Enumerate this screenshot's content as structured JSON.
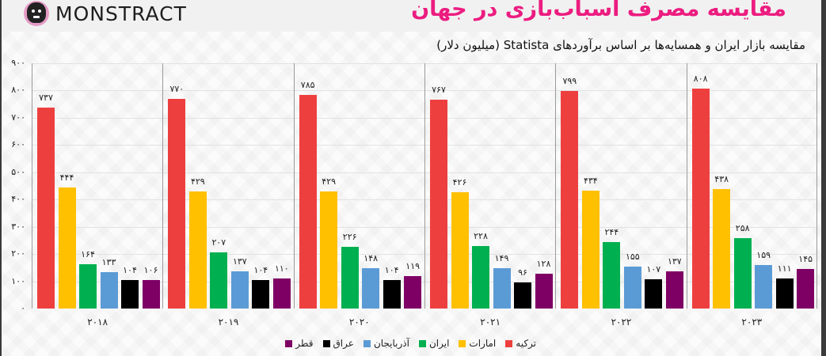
{
  "header": {
    "logo_text": "MONSTRACT",
    "title": "مقایسه مصرف اسباب‌بازی در جهان",
    "subtitle": "مقایسه بازار ایران و همسایه‌ها بر اساس برآوردهای Statista (میلیون دلار)"
  },
  "colors": {
    "title": "#ec1c80",
    "ترکیه": "#ee3f3f",
    "امارات": "#ffc000",
    "ایران": "#00b050",
    "آذربایجان": "#5b9bd5",
    "عراق": "#000000",
    "قطر": "#7f0065"
  },
  "chart_data": {
    "type": "bar",
    "title": "مقایسه مصرف اسباب‌بازی در جهان",
    "subtitle": "مقایسه بازار ایران و همسایه‌ها بر اساس برآوردهای Statista (میلیون دلار)",
    "xlabel": "",
    "ylabel": "میلیون دلار",
    "ylim": [
      0,
      900
    ],
    "yticks": [
      0,
      100,
      200,
      300,
      400,
      500,
      600,
      700,
      800,
      900
    ],
    "ytick_labels": [
      "۰",
      "۱۰۰",
      "۲۰۰",
      "۳۰۰",
      "۴۰۰",
      "۵۰۰",
      "۶۰۰",
      "۷۰۰",
      "۸۰۰",
      "۹۰۰"
    ],
    "grid": true,
    "legend_position": "bottom",
    "categories": [
      "2018",
      "2019",
      "2020",
      "2021",
      "2022",
      "2023"
    ],
    "category_labels": [
      "۲۰۱۸",
      "۲۰۱۹",
      "۲۰۲۰",
      "۲۰۲۱",
      "۲۰۲۲",
      "۲۰۲۳"
    ],
    "series": [
      {
        "name": "ترکیه",
        "color": "#ee3f3f",
        "values": [
          737,
          770,
          785,
          767,
          799,
          808
        ],
        "labels": [
          "۷۳۷",
          "۷۷۰",
          "۷۸۵",
          "۷۶۷",
          "۷۹۹",
          "۸۰۸"
        ]
      },
      {
        "name": "امارات",
        "color": "#ffc000",
        "values": [
          444,
          429,
          429,
          426,
          434,
          438
        ],
        "labels": [
          "۴۴۴",
          "۴۲۹",
          "۴۲۹",
          "۴۲۶",
          "۴۳۴",
          "۴۳۸"
        ]
      },
      {
        "name": "ایران",
        "color": "#00b050",
        "values": [
          164,
          207,
          226,
          228,
          244,
          258
        ],
        "labels": [
          "۱۶۴",
          "۲۰۷",
          "۲۲۶",
          "۲۲۸",
          "۲۴۴",
          "۲۵۸"
        ]
      },
      {
        "name": "آذربایجان",
        "color": "#5b9bd5",
        "values": [
          133,
          137,
          148,
          149,
          155,
          159
        ],
        "labels": [
          "۱۳۳",
          "۱۳۷",
          "۱۴۸",
          "۱۴۹",
          "۱۵۵",
          "۱۵۹"
        ]
      },
      {
        "name": "عراق",
        "color": "#000000",
        "values": [
          104,
          104,
          104,
          96,
          107,
          111
        ],
        "labels": [
          "۱۰۴",
          "۱۰۴",
          "۱۰۴",
          "۹۶",
          "۱۰۷",
          "۱۱۱"
        ]
      },
      {
        "name": "قطر",
        "color": "#7f0065",
        "values": [
          106,
          110,
          119,
          128,
          137,
          145
        ],
        "labels": [
          "۱۰۶",
          "۱۱۰",
          "۱۱۹",
          "۱۲۸",
          "۱۳۷",
          "۱۴۵"
        ]
      }
    ]
  }
}
